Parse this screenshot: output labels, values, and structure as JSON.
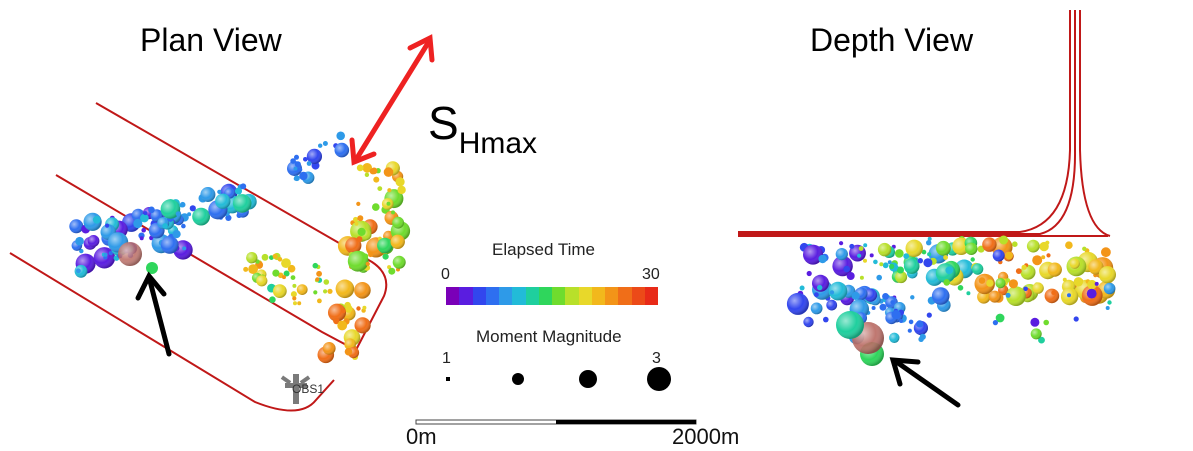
{
  "plan_view": {
    "title": "Plan View",
    "station_label": "OBS1"
  },
  "depth_view": {
    "title": "Depth View"
  },
  "stress": {
    "label_main": "S",
    "label_sub": "Hmax",
    "arrow_color": "#ee2222"
  },
  "legend": {
    "time_title": "Elapsed Time",
    "time_min": "0",
    "time_max": "30",
    "colors": [
      "#7a00b8",
      "#5a1de0",
      "#3246ee",
      "#2e6ff0",
      "#2e9ae8",
      "#22bbd8",
      "#1fcf9e",
      "#2fd65c",
      "#6fdc2e",
      "#b8e02a",
      "#e8d82a",
      "#f2b81c",
      "#f39418",
      "#f06e18",
      "#ec4a18",
      "#e82a18"
    ],
    "magnitude_title": "Moment Magnitude",
    "mag_min": "1",
    "mag_max": "3"
  },
  "scale_bar": {
    "start_label": "0m",
    "end_label": "2000m"
  },
  "well_color": "#c01818"
}
